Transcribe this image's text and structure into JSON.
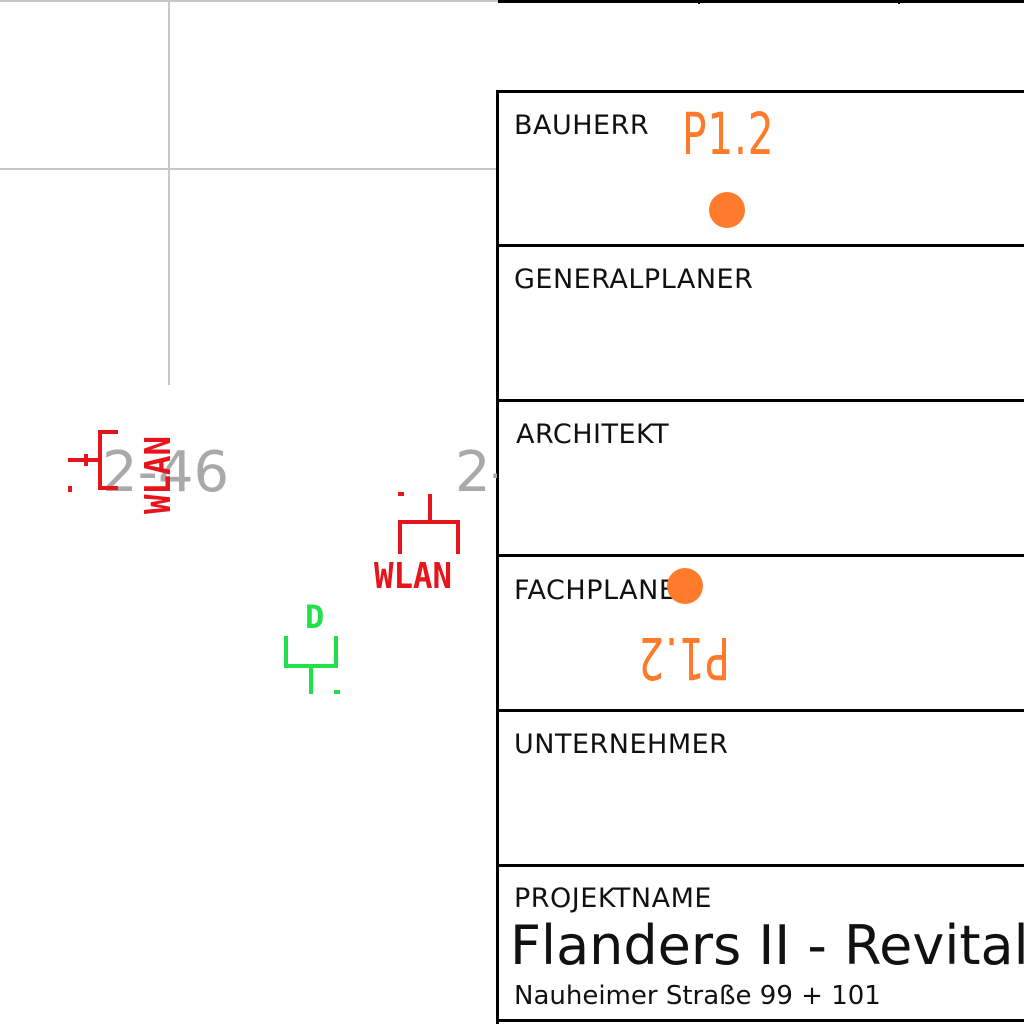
{
  "title_block": {
    "rows": [
      {
        "label": "BAUHERR"
      },
      {
        "label": "GENERALPLANER"
      },
      {
        "label": "ARCHITEKT"
      },
      {
        "label": "FACHPLANER"
      },
      {
        "label": "UNTERNEHMER"
      },
      {
        "label": "PROJEKTNAME"
      }
    ],
    "project_name": "Flanders II - Revitali",
    "project_address": "Nauheimer Straße 99 + 101"
  },
  "markers": {
    "top_label": "P1.2",
    "bottom_label": "P1.2",
    "color": "#ff7a2a"
  },
  "drawing": {
    "room_number_left": "2-46",
    "room_number_right": "2-",
    "wlan_left": "WLAN",
    "wlan_right": "WLAN",
    "data_label": "D",
    "wlan_color": "#e8141b",
    "data_color": "#22e04a",
    "room_color": "#a9a9a9"
  }
}
